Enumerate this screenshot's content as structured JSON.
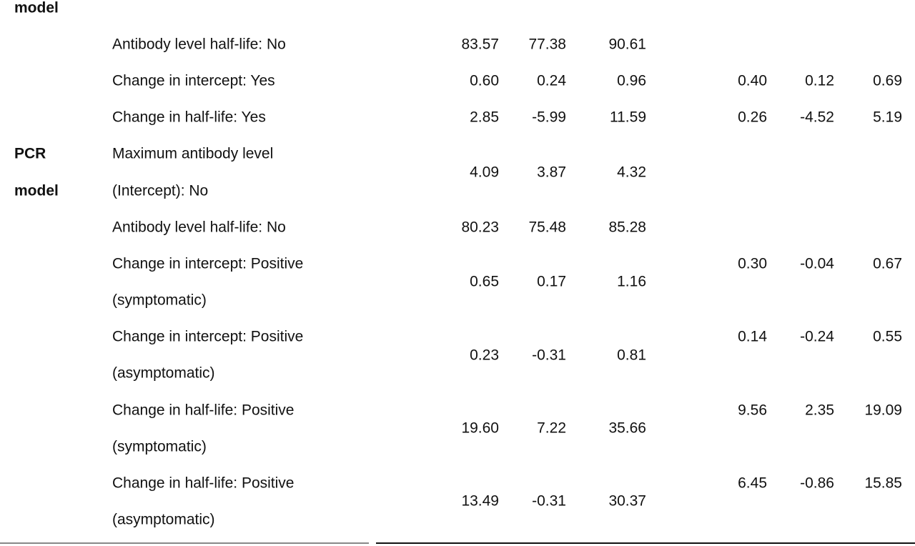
{
  "top_fragment": "model",
  "rows": [
    {
      "label": [
        "Antibody level half-life: No"
      ],
      "values": [
        "83.57",
        "77.38",
        "90.61"
      ]
    },
    {
      "label": [
        "Change in intercept: Yes"
      ],
      "values": [
        "0.60",
        "0.24",
        "0.96"
      ],
      "values2": [
        "0.40",
        "0.12",
        "0.69"
      ]
    },
    {
      "label": [
        "Change in half-life: Yes"
      ],
      "values": [
        "2.85",
        "-5.99",
        "11.59"
      ],
      "values2": [
        "0.26",
        "-4.52",
        "5.19"
      ]
    },
    {
      "group": [
        "PCR",
        "model"
      ],
      "label": [
        "Maximum antibody level",
        "(Intercept): No"
      ],
      "values": [
        "4.09",
        "3.87",
        "4.32"
      ]
    },
    {
      "label": [
        "Antibody level half-life: No"
      ],
      "values": [
        "80.23",
        "75.48",
        "85.28"
      ]
    },
    {
      "label": [
        "Change in intercept: Positive",
        "(symptomatic)"
      ],
      "values": [
        "0.65",
        "0.17",
        "1.16"
      ],
      "values2": [
        "0.30",
        "-0.04",
        "0.67"
      ]
    },
    {
      "label": [
        "Change in intercept: Positive",
        "(asymptomatic)"
      ],
      "values": [
        "0.23",
        "-0.31",
        "0.81"
      ],
      "values2": [
        "0.14",
        "-0.24",
        "0.55"
      ]
    },
    {
      "label": [
        "Change in half-life: Positive",
        "(symptomatic)"
      ],
      "values": [
        "19.60",
        "7.22",
        "35.66"
      ],
      "values2": [
        "9.56",
        "2.35",
        "19.09"
      ]
    },
    {
      "label": [
        "Change in half-life: Positive",
        "(asymptomatic)"
      ],
      "values": [
        "13.49",
        "-0.31",
        "30.37"
      ],
      "values2": [
        "6.45",
        "-0.86",
        "15.85"
      ]
    }
  ]
}
